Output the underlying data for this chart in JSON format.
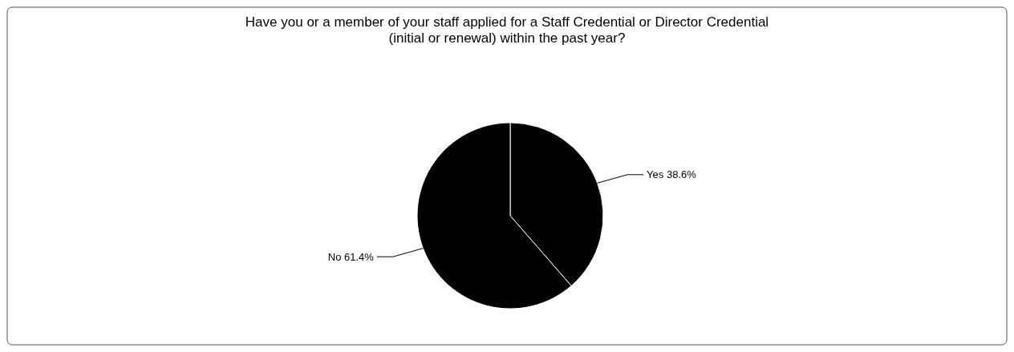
{
  "chart_data": {
    "type": "pie",
    "title": "Have you or a member of your staff applied for a Staff Credential or Director Credential (initial or renewal) within the past year?",
    "categories": [
      "Yes",
      "No"
    ],
    "values": [
      38.6,
      61.4
    ],
    "value_labels": [
      "38.6%",
      "61.4%"
    ],
    "colors": [
      "#000000",
      "#000000"
    ]
  }
}
